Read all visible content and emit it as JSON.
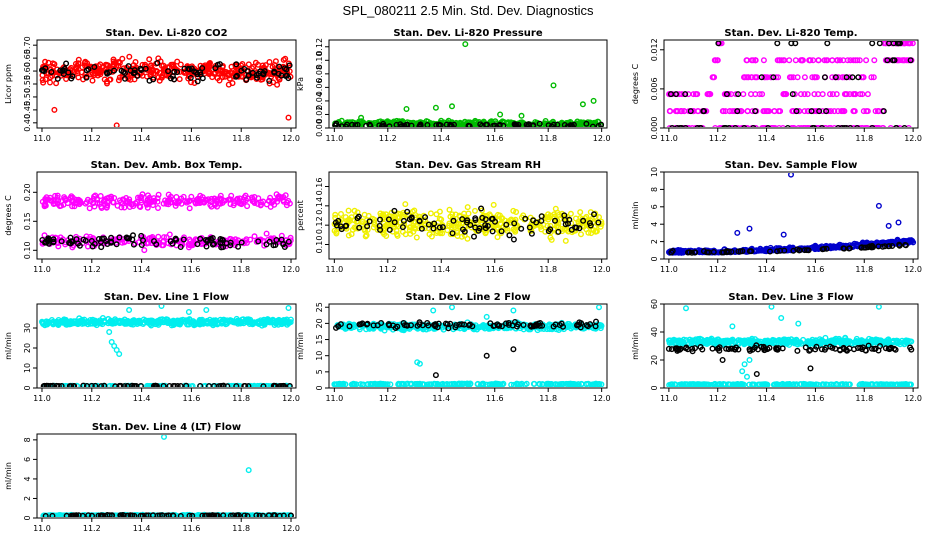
{
  "figure": {
    "title": "SPL_080211  2.5 Min. Std. Dev. Diagnostics"
  },
  "chart_data": [
    {
      "type": "scatter",
      "title": "Stan. Dev. Li-820 CO2",
      "xlabel": "",
      "ylabel": "Licor ppm",
      "xlim": [
        10.98,
        12.02
      ],
      "ylim": [
        0.38,
        0.72
      ],
      "xticks": [
        "11.0",
        "11.2",
        "11.4",
        "11.6",
        "11.8",
        "12.0"
      ],
      "yticks": [
        "0.40",
        "0.45",
        "0.50",
        "0.55",
        "0.60",
        "0.65",
        "0.70"
      ],
      "series": [
        {
          "name": "red",
          "color": "#ff0000",
          "pattern": "band",
          "center": 0.6,
          "spread": 0.045,
          "n": 380,
          "extra": [
            [
              11.3,
              0.39
            ],
            [
              11.99,
              0.42
            ],
            [
              11.05,
              0.45
            ]
          ]
        },
        {
          "name": "black",
          "color": "#000000",
          "pattern": "band",
          "center": 0.595,
          "spread": 0.035,
          "n": 90
        }
      ]
    },
    {
      "type": "scatter",
      "title": "Stan. Dev. Li-820 Pressure",
      "xlabel": "",
      "ylabel": "kPa",
      "xlim": [
        10.98,
        12.02
      ],
      "ylim": [
        0,
        0.13
      ],
      "xticks": [
        "11.0",
        "11.2",
        "11.4",
        "11.6",
        "11.8",
        "12.0"
      ],
      "yticks": [
        "0.00",
        "0.02",
        "0.04",
        "0.06",
        "0.08",
        "0.10",
        "0.12"
      ],
      "series": [
        {
          "name": "green",
          "color": "#00bb00",
          "pattern": "band",
          "center": 0.006,
          "spread": 0.004,
          "n": 380,
          "extra": [
            [
              11.49,
              0.124
            ],
            [
              11.82,
              0.063
            ],
            [
              11.97,
              0.04
            ],
            [
              11.93,
              0.035
            ],
            [
              11.38,
              0.03
            ],
            [
              11.27,
              0.028
            ],
            [
              11.44,
              0.032
            ],
            [
              11.62,
              0.02
            ],
            [
              11.1,
              0.015
            ],
            [
              11.7,
              0.018
            ]
          ]
        },
        {
          "name": "black",
          "color": "#000000",
          "pattern": "band",
          "center": 0.004,
          "spread": 0.003,
          "n": 80
        }
      ]
    },
    {
      "type": "scatter",
      "title": "Stan. Dev. Li-820 Temp.",
      "xlabel": "",
      "ylabel": "degrees C",
      "xlim": [
        10.98,
        12.02
      ],
      "ylim": [
        0,
        0.0135
      ],
      "xticks": [
        "11.0",
        "11.2",
        "11.4",
        "11.6",
        "11.8",
        "12.0"
      ],
      "yticks": [
        "0.000",
        "0.006",
        "0.012"
      ],
      "series": [
        {
          "name": "magenta",
          "color": "#ff00ff",
          "pattern": "levels",
          "levels": [
            0,
            0.0026,
            0.0052,
            0.0078,
            0.0104,
            0.013
          ],
          "n": 420
        },
        {
          "name": "black",
          "color": "#000000",
          "pattern": "levels",
          "levels": [
            0,
            0.0026,
            0.0052,
            0.0078,
            0.013
          ],
          "n": 70
        }
      ]
    },
    {
      "type": "scatter",
      "title": "Stan. Dev. Amb. Box Temp.",
      "xlabel": "",
      "ylabel": "degrees C",
      "xlim": [
        10.98,
        12.02
      ],
      "ylim": [
        0.085,
        0.235
      ],
      "xticks": [
        "11.0",
        "11.2",
        "11.4",
        "11.6",
        "11.8",
        "12.0"
      ],
      "yticks": [
        "0.10",
        "0.15",
        "0.20"
      ],
      "series": [
        {
          "name": "magenta-high",
          "color": "#ff00ff",
          "pattern": "band",
          "center": 0.185,
          "spread": 0.012,
          "n": 260
        },
        {
          "name": "magenta-low",
          "color": "#ff00ff",
          "pattern": "band",
          "center": 0.115,
          "spread": 0.01,
          "n": 200
        },
        {
          "name": "black",
          "color": "#000000",
          "pattern": "band",
          "center": 0.115,
          "spread": 0.01,
          "n": 90
        }
      ]
    },
    {
      "type": "scatter",
      "title": "Stan. Dev. Gas Stream RH",
      "xlabel": "",
      "ylabel": "percent",
      "xlim": [
        10.98,
        12.02
      ],
      "ylim": [
        0.085,
        0.175
      ],
      "xticks": [
        "11.0",
        "11.2",
        "11.4",
        "11.6",
        "11.8",
        "12.0"
      ],
      "yticks": [
        "0.10",
        "0.12",
        "0.14",
        "0.16"
      ],
      "series": [
        {
          "name": "yellow",
          "color": "#f0f000",
          "pattern": "band",
          "center": 0.122,
          "spread": 0.015,
          "n": 420
        },
        {
          "name": "black",
          "color": "#000000",
          "pattern": "band",
          "center": 0.122,
          "spread": 0.013,
          "n": 90
        }
      ]
    },
    {
      "type": "scatter",
      "title": "Stan. Dev. Sample Flow",
      "xlabel": "",
      "ylabel": "ml/min",
      "xlim": [
        10.98,
        12.02
      ],
      "ylim": [
        0,
        10
      ],
      "xticks": [
        "11.0",
        "11.2",
        "11.4",
        "11.6",
        "11.8",
        "12.0"
      ],
      "yticks": [
        "0",
        "2",
        "4",
        "6",
        "8",
        "10"
      ],
      "series": [
        {
          "name": "blue",
          "color": "#0000cc",
          "pattern": "ramp",
          "start": 0.7,
          "end": 1.9,
          "spread": 0.35,
          "n": 420,
          "extra": [
            [
              11.5,
              9.7
            ],
            [
              11.86,
              6.1
            ],
            [
              11.28,
              3.0
            ],
            [
              11.33,
              3.5
            ],
            [
              11.94,
              4.2
            ],
            [
              11.9,
              3.8
            ],
            [
              11.47,
              2.8
            ]
          ]
        },
        {
          "name": "black",
          "color": "#000000",
          "pattern": "ramp",
          "start": 0.7,
          "end": 1.6,
          "spread": 0.2,
          "n": 60
        }
      ]
    },
    {
      "type": "scatter",
      "title": "Stan. Dev. Line 1 Flow",
      "xlabel": "",
      "ylabel": "ml/min",
      "xlim": [
        10.98,
        12.02
      ],
      "ylim": [
        0,
        42
      ],
      "xticks": [
        "11.0",
        "11.2",
        "11.4",
        "11.6",
        "11.8",
        "12.0"
      ],
      "yticks": [
        "0",
        "10",
        "20",
        "30"
      ],
      "series": [
        {
          "name": "cyan",
          "color": "#00eeee",
          "pattern": "band",
          "center": 33,
          "spread": 1.6,
          "n": 420,
          "extra": [
            [
              11.29,
              21
            ],
            [
              11.3,
              19
            ],
            [
              11.31,
              17
            ],
            [
              11.28,
              23
            ],
            [
              11.27,
              28
            ],
            [
              11.48,
              41
            ],
            [
              11.35,
              39
            ],
            [
              11.99,
              40
            ],
            [
              11.66,
              39
            ],
            [
              11.59,
              38
            ]
          ]
        },
        {
          "name": "cyan-low",
          "color": "#00eeee",
          "pattern": "band",
          "center": 1,
          "spread": 0.2,
          "n": 120
        },
        {
          "name": "black",
          "color": "#000000",
          "pattern": "band",
          "center": 1,
          "spread": 0.15,
          "n": 70
        }
      ]
    },
    {
      "type": "scatter",
      "title": "Stan. Dev. Line 2 Flow",
      "xlabel": "",
      "ylabel": "ml/min",
      "xlim": [
        10.98,
        12.02
      ],
      "ylim": [
        0,
        26
      ],
      "xticks": [
        "11.0",
        "11.2",
        "11.4",
        "11.6",
        "11.8",
        "12.0"
      ],
      "yticks": [
        "0",
        "5",
        "10",
        "15",
        "20",
        "25"
      ],
      "series": [
        {
          "name": "cyan",
          "color": "#00eeee",
          "pattern": "band",
          "center": 19,
          "spread": 1.0,
          "n": 380,
          "extra": [
            [
              11.31,
              8
            ],
            [
              11.32,
              7.5
            ],
            [
              11.37,
              24
            ],
            [
              11.44,
              25
            ],
            [
              11.67,
              24
            ],
            [
              11.99,
              25
            ],
            [
              11.57,
              22
            ]
          ]
        },
        {
          "name": "cyan-low",
          "color": "#00eeee",
          "pattern": "band",
          "center": 1.2,
          "spread": 0.2,
          "n": 200
        },
        {
          "name": "black",
          "color": "#000000",
          "pattern": "band",
          "center": 19.5,
          "spread": 1.0,
          "n": 90,
          "extra": [
            [
              11.38,
              4
            ],
            [
              11.57,
              10
            ],
            [
              11.67,
              12
            ]
          ]
        }
      ]
    },
    {
      "type": "scatter",
      "title": "Stan. Dev. Line 3 Flow",
      "xlabel": "",
      "ylabel": "ml/min",
      "xlim": [
        10.98,
        12.02
      ],
      "ylim": [
        0,
        60
      ],
      "xticks": [
        "11.0",
        "11.2",
        "11.4",
        "11.6",
        "11.8",
        "12.0"
      ],
      "yticks": [
        "0",
        "20",
        "40",
        "60"
      ],
      "series": [
        {
          "name": "cyan",
          "color": "#00eeee",
          "pattern": "band",
          "center": 33,
          "spread": 2.2,
          "n": 400,
          "extra": [
            [
              11.3,
              12
            ],
            [
              11.32,
              8
            ],
            [
              11.31,
              17
            ],
            [
              11.33,
              20
            ],
            [
              11.07,
              57
            ],
            [
              11.42,
              58
            ],
            [
              11.86,
              58
            ],
            [
              11.46,
              50
            ],
            [
              11.53,
              46
            ],
            [
              11.26,
              44
            ]
          ]
        },
        {
          "name": "cyan-low",
          "color": "#00eeee",
          "pattern": "band",
          "center": 2.5,
          "spread": 0.4,
          "n": 220
        },
        {
          "name": "black",
          "color": "#000000",
          "pattern": "band",
          "center": 28,
          "spread": 1.8,
          "n": 90,
          "extra": [
            [
              11.36,
              10
            ],
            [
              11.58,
              14
            ],
            [
              11.22,
              20
            ]
          ]
        }
      ]
    },
    {
      "type": "scatter",
      "title": "Stan. Dev. Line 4 (LT) Flow",
      "xlabel": "",
      "ylabel": "ml/min",
      "xlim": [
        10.98,
        12.02
      ],
      "ylim": [
        0,
        8.6
      ],
      "xticks": [
        "11.0",
        "11.2",
        "11.4",
        "11.6",
        "11.8",
        "12.0"
      ],
      "yticks": [
        "0",
        "2",
        "4",
        "6",
        "8"
      ],
      "series": [
        {
          "name": "cyan",
          "color": "#00eeee",
          "pattern": "band",
          "center": 0.25,
          "spread": 0.07,
          "n": 400,
          "extra": [
            [
              11.49,
              8.3
            ],
            [
              11.83,
              4.9
            ]
          ]
        },
        {
          "name": "black",
          "color": "#000000",
          "pattern": "band",
          "center": 0.25,
          "spread": 0.05,
          "n": 80
        }
      ]
    }
  ]
}
